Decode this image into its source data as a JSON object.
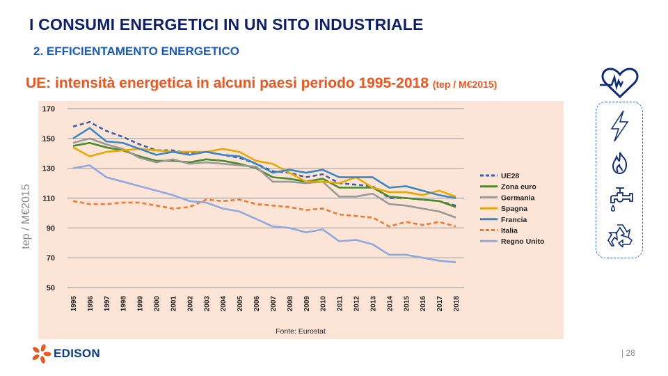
{
  "header": {
    "title": "I CONSUMI ENERGETICI IN UN SITO INDUSTRIALE",
    "subtitle": "2. EFFICIENTAMENTO  ENERGETICO"
  },
  "chart_heading": {
    "text": "UE: intensità energetica in alcuni paesi periodo 1995-2018",
    "unit": "(tep / M€2015)"
  },
  "chart_data": {
    "type": "line",
    "title": "UE: intensità energetica in alcuni paesi periodo 1995-2018",
    "ylabel": "tep / M€2015",
    "xlabel": "",
    "ylim": [
      50,
      170
    ],
    "yticks": [
      50,
      70,
      90,
      110,
      130,
      150,
      170
    ],
    "grid": true,
    "legend_position": "right",
    "source": "Fonte: Eurostat",
    "x": [
      "1995",
      "1996",
      "1997",
      "1998",
      "1999",
      "2000",
      "2001",
      "2002",
      "2003",
      "2004",
      "2005",
      "2006",
      "2007",
      "2008",
      "2009",
      "2010",
      "2011",
      "2012",
      "2013",
      "2014",
      "2015",
      "2016",
      "2017",
      "2018"
    ],
    "series": [
      {
        "name": "UE28",
        "color": "#3b5fb0",
        "dashed": true,
        "values": [
          158,
          161,
          155,
          151,
          146,
          142,
          142,
          140,
          141,
          139,
          137,
          133,
          128,
          127,
          124,
          126,
          120,
          119,
          118,
          110,
          110,
          109,
          108,
          105
        ]
      },
      {
        "name": "Zona euro",
        "color": "#4a8a2a",
        "dashed": false,
        "values": [
          145,
          147,
          144,
          142,
          138,
          135,
          135,
          134,
          136,
          135,
          133,
          130,
          124,
          123,
          121,
          123,
          117,
          117,
          117,
          111,
          110,
          109,
          108,
          104
        ]
      },
      {
        "name": "Germania",
        "color": "#999999",
        "dashed": false,
        "values": [
          147,
          150,
          146,
          143,
          137,
          134,
          136,
          133,
          134,
          133,
          132,
          131,
          121,
          121,
          120,
          121,
          111,
          111,
          113,
          106,
          105,
          103,
          101,
          97
        ]
      },
      {
        "name": "Spagna",
        "color": "#e8a800",
        "dashed": false,
        "values": [
          144,
          138,
          141,
          142,
          143,
          142,
          141,
          141,
          141,
          143,
          141,
          135,
          133,
          127,
          121,
          121,
          120,
          124,
          117,
          114,
          114,
          112,
          115,
          111
        ]
      },
      {
        "name": "Francia",
        "color": "#3a86c4",
        "dashed": false,
        "values": [
          150,
          157,
          148,
          147,
          143,
          139,
          141,
          139,
          141,
          139,
          138,
          133,
          127,
          129,
          127,
          129,
          124,
          124,
          124,
          117,
          118,
          115,
          112,
          110
        ]
      },
      {
        "name": "Italia",
        "color": "#f07a30",
        "dashed": true,
        "values": [
          108,
          106,
          106,
          107,
          107,
          105,
          103,
          104,
          109,
          108,
          109,
          106,
          105,
          104,
          102,
          103,
          99,
          98,
          97,
          91,
          94,
          92,
          94,
          91
        ]
      },
      {
        "name": "Regno Unito",
        "color": "#8fa8e0",
        "dashed": false,
        "values": [
          130,
          132,
          124,
          121,
          118,
          115,
          112,
          108,
          107,
          103,
          101,
          96,
          91,
          90,
          87,
          89,
          81,
          82,
          79,
          72,
          72,
          70,
          68,
          67
        ]
      }
    ]
  },
  "footer": {
    "logo_text": "EDISON",
    "page_number": "| 28"
  }
}
